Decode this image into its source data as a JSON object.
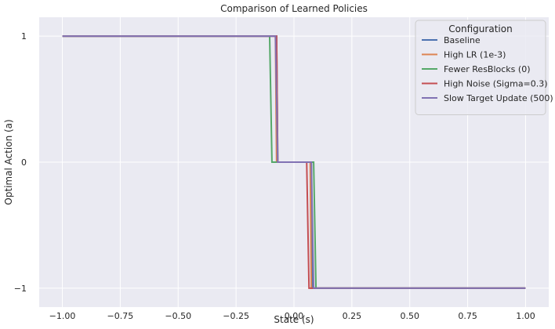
{
  "chart_data": {
    "type": "line",
    "title": "Comparison of Learned Policies",
    "xlabel": "State (s)",
    "ylabel": "Optimal Action (a)",
    "xlim": [
      -1.1,
      1.1
    ],
    "ylim": [
      -1.15,
      1.15
    ],
    "xticks": [
      -1.0,
      -0.75,
      -0.5,
      -0.25,
      0.0,
      0.25,
      0.5,
      0.75,
      1.0
    ],
    "xtick_labels": [
      "−1.00",
      "−0.75",
      "−0.50",
      "−0.25",
      "0.00",
      "0.25",
      "0.50",
      "0.75",
      "1.00"
    ],
    "yticks": [
      -1,
      0,
      1
    ],
    "ytick_labels": [
      "−1",
      "0",
      "1"
    ],
    "grid": true,
    "legend": {
      "title": "Configuration",
      "placement": "top-right"
    },
    "series": [
      {
        "name": "Baseline",
        "color": "#4c72b0",
        "x": [
          -1.0,
          -0.075,
          -0.07,
          0.075,
          0.08,
          1.0
        ],
        "y": [
          1,
          1,
          0,
          0,
          -1,
          -1
        ]
      },
      {
        "name": "High LR (1e-3)",
        "color": "#dd8452",
        "x": [
          -1.0,
          -0.08,
          -0.075,
          0.07,
          0.075,
          1.0
        ],
        "y": [
          1,
          1,
          0,
          0,
          -1,
          -1
        ]
      },
      {
        "name": "Fewer ResBlocks (0)",
        "color": "#55a868",
        "x": [
          -1.0,
          -0.105,
          -0.095,
          0.085,
          0.095,
          1.0
        ],
        "y": [
          1,
          1,
          0,
          0,
          -1,
          -1
        ]
      },
      {
        "name": "High Noise (Sigma=0.3)",
        "color": "#c44e52",
        "x": [
          -1.0,
          -0.075,
          -0.07,
          0.055,
          0.065,
          1.0
        ],
        "y": [
          1,
          1,
          0,
          0,
          -1,
          -1
        ]
      },
      {
        "name": "Slow Target Update (500)",
        "color": "#8172b3",
        "x": [
          -1.0,
          -0.08,
          -0.07,
          0.075,
          0.085,
          1.0
        ],
        "y": [
          1,
          1,
          0,
          0,
          -1,
          -1
        ]
      }
    ]
  }
}
